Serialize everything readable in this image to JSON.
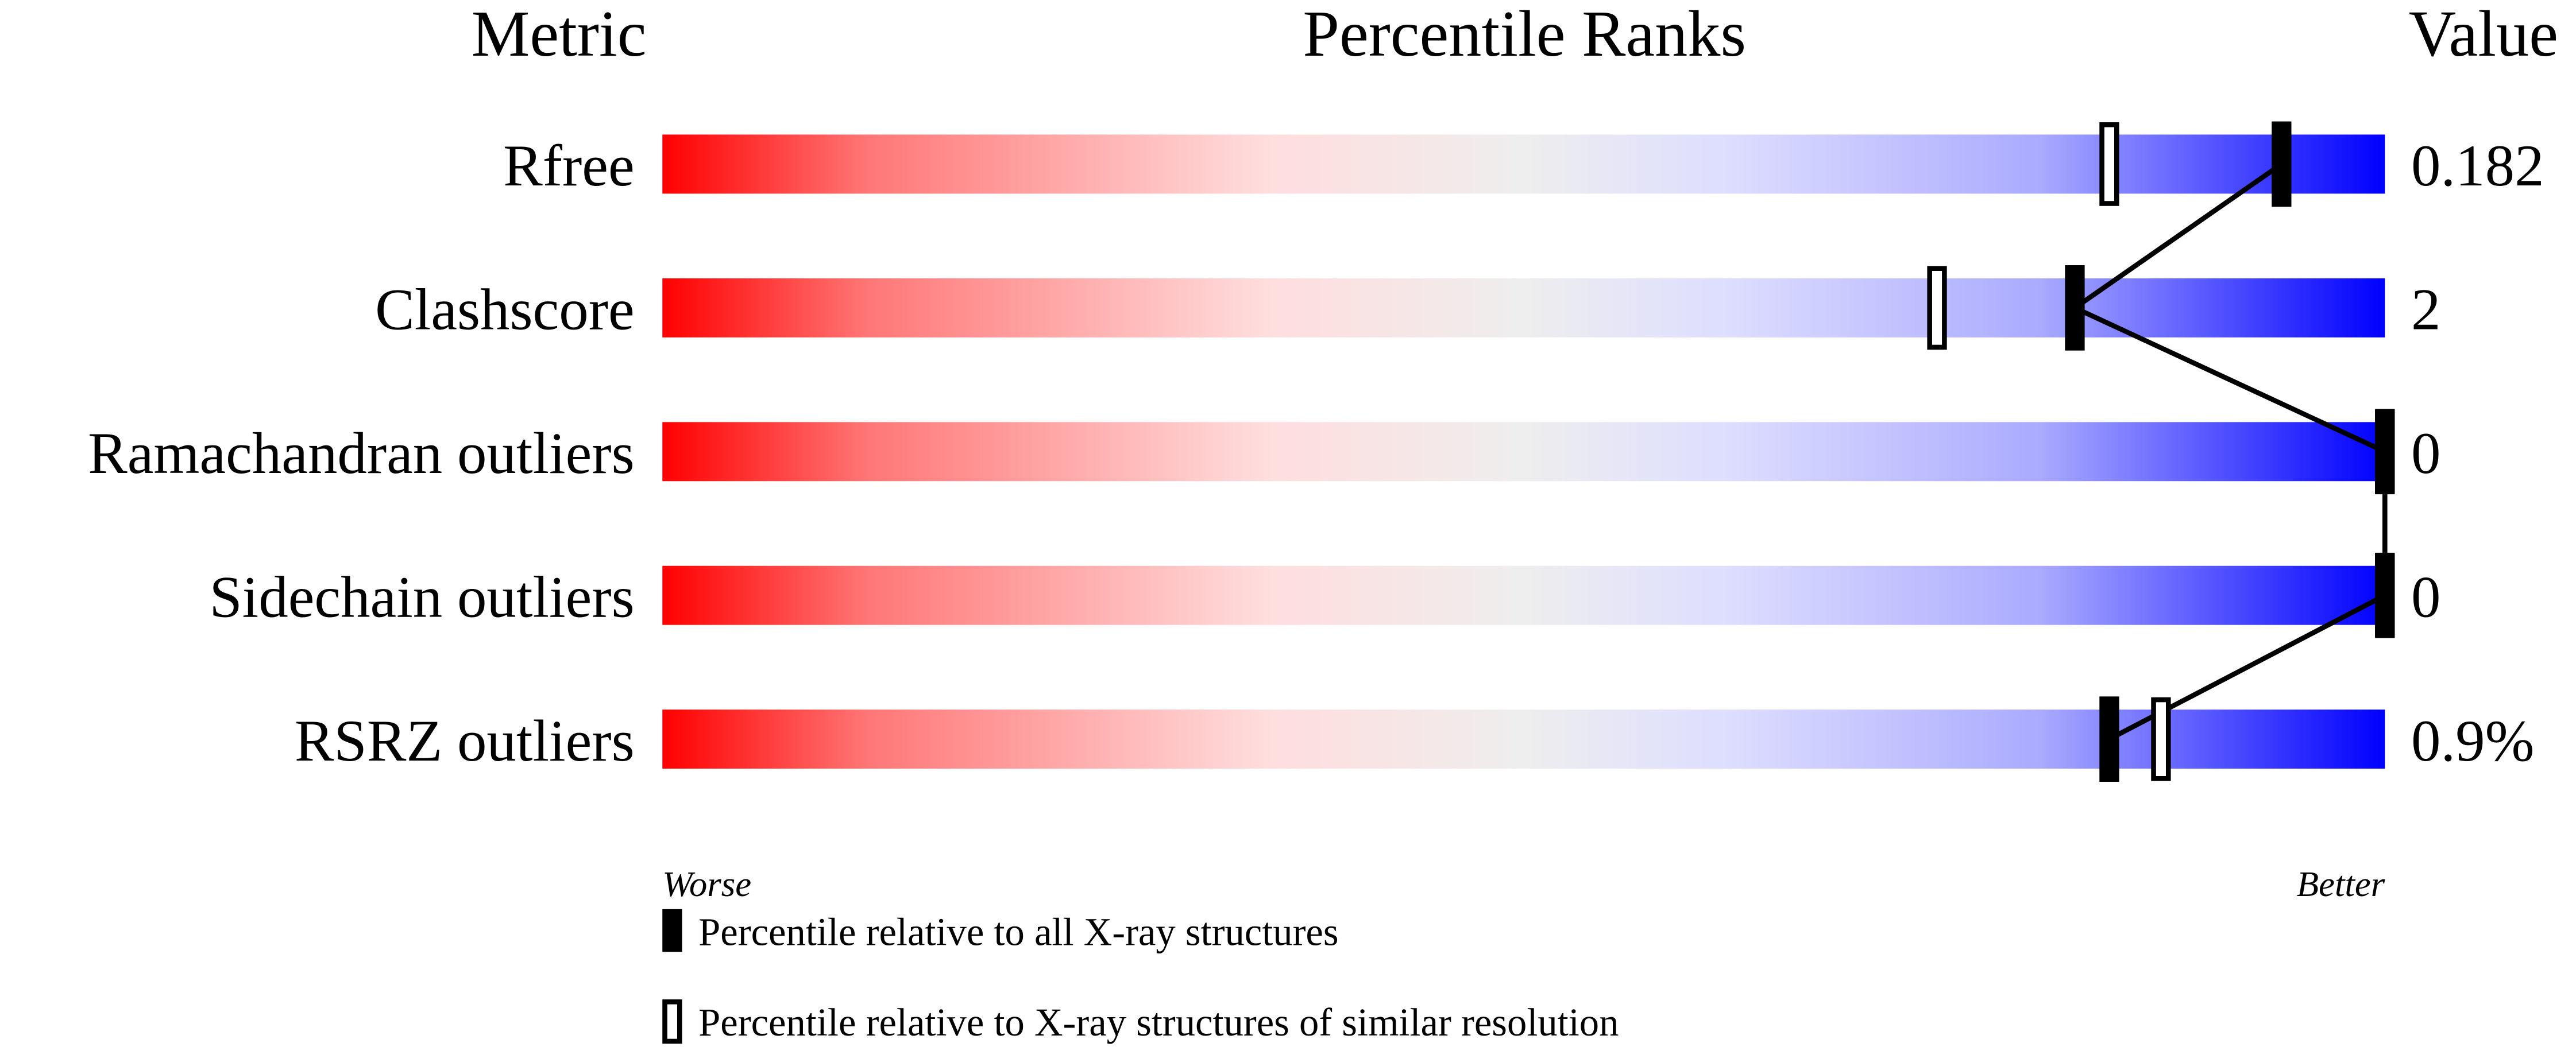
{
  "chart_data": {
    "type": "bar",
    "headers": {
      "metric": "Metric",
      "ranks": "Percentile Ranks",
      "value": "Value"
    },
    "xlim": [
      0,
      100
    ],
    "rows": [
      {
        "metric": "Rfree",
        "value": "0.182",
        "percentile_all": 94,
        "percentile_similar": 84
      },
      {
        "metric": "Clashscore",
        "value": "2",
        "percentile_all": 82,
        "percentile_similar": 74
      },
      {
        "metric": "Ramachandran outliers",
        "value": "0",
        "percentile_all": 100,
        "percentile_similar": 100
      },
      {
        "metric": "Sidechain outliers",
        "value": "0",
        "percentile_all": 100,
        "percentile_similar": 100
      },
      {
        "metric": "RSRZ outliers",
        "value": "0.9%",
        "percentile_all": 84,
        "percentile_similar": 87
      }
    ],
    "axis_left": "Worse",
    "axis_right": "Better",
    "legend": {
      "filled": "Percentile relative to all X-ray structures",
      "hollow": "Percentile relative to X-ray structures of similar resolution"
    },
    "colors": {
      "worse": "#ff0000",
      "middle": "#eeeeee",
      "better": "#0000ff"
    }
  }
}
